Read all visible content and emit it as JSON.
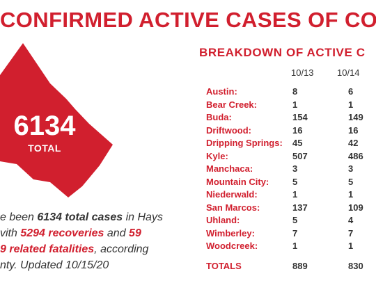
{
  "title": "CONFIRMED ACTIVE CASES OF COVID",
  "total": {
    "number": "6134",
    "label": "TOTAL"
  },
  "summary": {
    "line1_pre": "e been ",
    "line1_bold": "6134 total cases",
    "line1_post": " in Hays",
    "line2_pre": "vith ",
    "line2_bold": "5294 recoveries",
    "line2_mid": " and ",
    "line2_bold2": "59",
    "line3_bold": "9 related fatalities",
    "line3_post": ", according",
    "line4": "nty. Updated 10/15/20"
  },
  "breakdown": {
    "heading": "BREAKDOWN OF ACTIVE C",
    "col1": "10/13",
    "col2": "10/14",
    "rows": [
      {
        "name": "Austin:",
        "v1": "8",
        "v2": "6"
      },
      {
        "name": "Bear Creek:",
        "v1": "1",
        "v2": "1"
      },
      {
        "name": "Buda:",
        "v1": "154",
        "v2": "149"
      },
      {
        "name": "Driftwood:",
        "v1": "16",
        "v2": "16"
      },
      {
        "name": "Dripping Springs:",
        "v1": "45",
        "v2": "42"
      },
      {
        "name": "Kyle:",
        "v1": "507",
        "v2": "486"
      },
      {
        "name": "Manchaca:",
        "v1": "3",
        "v2": "3"
      },
      {
        "name": "Mountain City:",
        "v1": "5",
        "v2": "5"
      },
      {
        "name": "Niederwald:",
        "v1": "1",
        "v2": "1"
      },
      {
        "name": "San Marcos:",
        "v1": "137",
        "v2": "109"
      },
      {
        "name": "Uhland:",
        "v1": "5",
        "v2": "4"
      },
      {
        "name": "Wimberley:",
        "v1": "7",
        "v2": "7"
      },
      {
        "name": "Woodcreek:",
        "v1": "1",
        "v2": "1"
      }
    ],
    "totals": {
      "name": "TOTALS",
      "v1": "889",
      "v2": "830"
    }
  },
  "colors": {
    "accent": "#d11f2e",
    "text": "#333333"
  }
}
